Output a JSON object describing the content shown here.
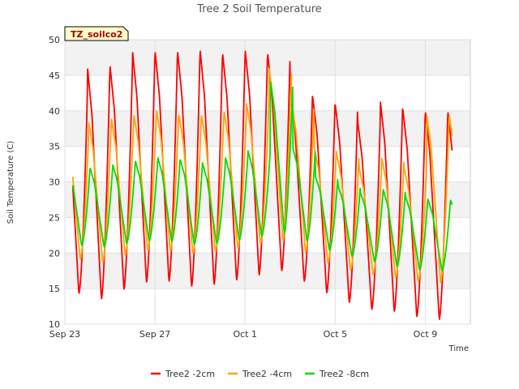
{
  "chart_data": {
    "type": "line",
    "title": "Tree 2 Soil Temperature",
    "xlabel": "Time",
    "ylabel": "Soil Temperature (C)",
    "ylim": [
      10,
      50
    ],
    "yticks": [
      10,
      15,
      20,
      25,
      30,
      35,
      40,
      45,
      50
    ],
    "xlim": [
      "Sep 23",
      "Oct 11"
    ],
    "xticks": [
      "Sep 23",
      "Sep 27",
      "Oct 1",
      "Oct 5",
      "Oct 9"
    ],
    "site_label": "TZ_soilco2",
    "grid": true,
    "background_bands": true,
    "legend_position": "bottom",
    "series": [
      {
        "name": "Tree2 -2cm",
        "color": "#ff0000",
        "daily_max": [
          42.5,
          46.2,
          46.5,
          48.5,
          48.5,
          48.5,
          48.7,
          48.2,
          48.7,
          48.2,
          43.2,
          42.0,
          41.0,
          38.5,
          41.5,
          40.3,
          40.0
        ],
        "daily_min": [
          16.8,
          12.8,
          13.9,
          15.4,
          16.1,
          15.9,
          14.9,
          15.9,
          16.3,
          17.2,
          17.6,
          15.0,
          14.0,
          12.4,
          11.8,
          11.7,
          10.6
        ]
      },
      {
        "name": "Tree2 -4cm",
        "color": "#ffa500",
        "daily_max": [
          37.0,
          38.5,
          39.0,
          39.5,
          40.2,
          39.5,
          39.5,
          40.0,
          41.2,
          46.2,
          41.0,
          35.0,
          34.0,
          32.0,
          33.5,
          32.0,
          39.5
        ],
        "daily_min": [
          21.0,
          18.0,
          19.0,
          20.0,
          20.5,
          20.0,
          19.8,
          20.3,
          20.8,
          21.5,
          21.8,
          19.0,
          18.2,
          17.2,
          16.8,
          16.2,
          15.8
        ]
      },
      {
        "name": "Tree2 -8cm",
        "color": "#00dd00",
        "daily_max": [
          32.3,
          32.0,
          32.5,
          33.0,
          33.5,
          33.2,
          32.5,
          33.5,
          34.5,
          44.2,
          34.8,
          30.8,
          29.5,
          28.5,
          29.0,
          28.0,
          27.5
        ],
        "daily_min": [
          22.0,
          20.5,
          21.0,
          21.5,
          21.8,
          21.5,
          21.0,
          21.5,
          22.0,
          22.5,
          22.8,
          21.0,
          20.0,
          19.2,
          18.5,
          17.8,
          17.5
        ]
      }
    ]
  }
}
